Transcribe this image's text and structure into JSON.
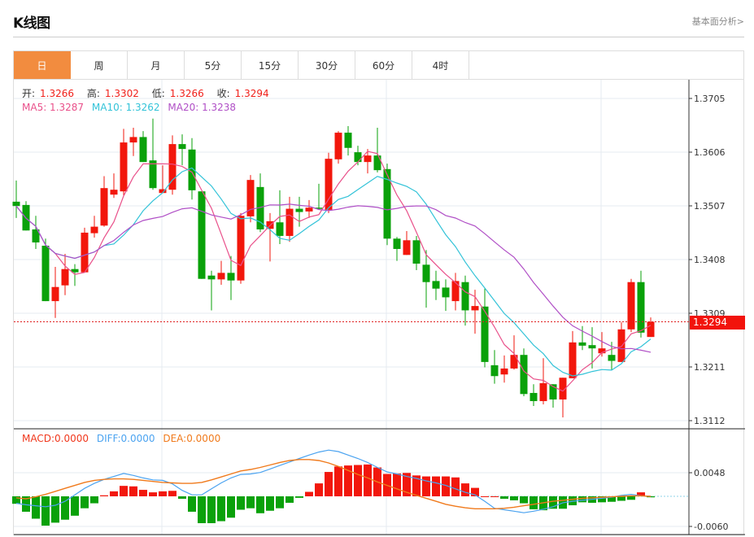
{
  "header": {
    "title": "K线图",
    "link": "基本面分析>"
  },
  "tabs": [
    {
      "label": "日",
      "active": true
    },
    {
      "label": "周"
    },
    {
      "label": "月"
    },
    {
      "label": "5分"
    },
    {
      "label": "15分"
    },
    {
      "label": "30分"
    },
    {
      "label": "60分"
    },
    {
      "label": "4时"
    }
  ],
  "ohlc_legend": {
    "open_label": "开:",
    "open": "1.3266",
    "high_label": "高:",
    "high": "1.3302",
    "low_label": "低:",
    "low": "1.3266",
    "close_label": "收:",
    "close": "1.3294"
  },
  "ma_legend": {
    "ma5": "MA5: 1.3287",
    "ma10": "MA10: 1.3262",
    "ma20": "MA20: 1.3238"
  },
  "macd_legend": {
    "macd": "MACD:0.0000",
    "diff": "DIFF:0.0000",
    "dea": "DEA:0.0000"
  },
  "current_price": "1.3294",
  "colors": {
    "up": "#f2170c",
    "down": "#0aa10a",
    "ma5": "#e9508a",
    "ma10": "#33c3d8",
    "ma20": "#b04fc6",
    "diff": "#4ba3f0",
    "dea": "#f07a1c",
    "accent": "#f28c3f"
  },
  "chart_data": {
    "type": "candlestick",
    "price_axis": {
      "ticks": [
        "1.3705",
        "1.3606",
        "1.3507",
        "1.3408",
        "1.3309",
        "1.3211",
        "1.3112"
      ],
      "range": [
        1.3112,
        1.3705
      ]
    },
    "macd_axis": {
      "ticks": [
        "0.0048",
        "-0.0060"
      ]
    },
    "candles": [
      [
        1.3515,
        1.3554,
        1.3485,
        1.3507
      ],
      [
        1.3509,
        1.3516,
        1.3462,
        1.3462
      ],
      [
        1.3464,
        1.3489,
        1.3428,
        1.344
      ],
      [
        1.3434,
        1.3447,
        1.3332,
        1.3332
      ],
      [
        1.3332,
        1.3395,
        1.3301,
        1.3358
      ],
      [
        1.3361,
        1.3419,
        1.3343,
        1.3391
      ],
      [
        1.3391,
        1.34,
        1.336,
        1.3385
      ],
      [
        1.3385,
        1.3467,
        1.3385,
        1.3458
      ],
      [
        1.3457,
        1.3489,
        1.3449,
        1.3469
      ],
      [
        1.3471,
        1.3562,
        1.3469,
        1.354
      ],
      [
        1.3528,
        1.3567,
        1.3522,
        1.3537
      ],
      [
        1.3534,
        1.3649,
        1.3527,
        1.3624
      ],
      [
        1.3624,
        1.3651,
        1.3599,
        1.3634
      ],
      [
        1.3634,
        1.3645,
        1.3588,
        1.3588
      ],
      [
        1.3591,
        1.3668,
        1.3537,
        1.354
      ],
      [
        1.3531,
        1.3582,
        1.3531,
        1.3538
      ],
      [
        1.3537,
        1.3637,
        1.3528,
        1.3621
      ],
      [
        1.3621,
        1.3639,
        1.3582,
        1.3612
      ],
      [
        1.3611,
        1.3632,
        1.3519,
        1.3536
      ],
      [
        1.3534,
        1.3534,
        1.3373,
        1.3373
      ],
      [
        1.3379,
        1.3388,
        1.3315,
        1.3372
      ],
      [
        1.3372,
        1.3406,
        1.3362,
        1.3384
      ],
      [
        1.3384,
        1.3415,
        1.3334,
        1.337
      ],
      [
        1.337,
        1.3494,
        1.3364,
        1.3489
      ],
      [
        1.3488,
        1.3564,
        1.3477,
        1.3555
      ],
      [
        1.3542,
        1.3567,
        1.3459,
        1.3464
      ],
      [
        1.3465,
        1.3494,
        1.3405,
        1.3479
      ],
      [
        1.3477,
        1.3536,
        1.3437,
        1.3452
      ],
      [
        1.3452,
        1.3524,
        1.3441,
        1.3502
      ],
      [
        1.3502,
        1.3524,
        1.3469,
        1.3496
      ],
      [
        1.3497,
        1.3518,
        1.3485,
        1.3504
      ],
      [
        1.3504,
        1.3548,
        1.35,
        1.3502
      ],
      [
        1.35,
        1.3605,
        1.3494,
        1.3594
      ],
      [
        1.3593,
        1.3645,
        1.3585,
        1.3642
      ],
      [
        1.3642,
        1.3654,
        1.36,
        1.3614
      ],
      [
        1.3606,
        1.3618,
        1.3582,
        1.3588
      ],
      [
        1.3588,
        1.3612,
        1.3567,
        1.36
      ],
      [
        1.36,
        1.3651,
        1.3569,
        1.3573
      ],
      [
        1.3575,
        1.3585,
        1.3435,
        1.3447
      ],
      [
        1.3447,
        1.345,
        1.3406,
        1.3428
      ],
      [
        1.3417,
        1.3461,
        1.3417,
        1.3444
      ],
      [
        1.3444,
        1.3452,
        1.3389,
        1.3401
      ],
      [
        1.3399,
        1.3426,
        1.332,
        1.3367
      ],
      [
        1.3369,
        1.3388,
        1.3334,
        1.3355
      ],
      [
        1.3357,
        1.3372,
        1.3314,
        1.3339
      ],
      [
        1.3332,
        1.3384,
        1.3315,
        1.3369
      ],
      [
        1.3367,
        1.3379,
        1.3287,
        1.3315
      ],
      [
        1.3315,
        1.3353,
        1.3272,
        1.3323
      ],
      [
        1.3322,
        1.3355,
        1.321,
        1.322
      ],
      [
        1.3214,
        1.3242,
        1.318,
        1.3194
      ],
      [
        1.3197,
        1.3232,
        1.3182,
        1.3208
      ],
      [
        1.3208,
        1.3269,
        1.3206,
        1.3233
      ],
      [
        1.3233,
        1.3245,
        1.3157,
        1.3161
      ],
      [
        1.3163,
        1.3179,
        1.3139,
        1.3148
      ],
      [
        1.3148,
        1.3227,
        1.3142,
        1.3181
      ],
      [
        1.3179,
        1.3179,
        1.3136,
        1.3151
      ],
      [
        1.3151,
        1.3191,
        1.3118,
        1.3191
      ],
      [
        1.319,
        1.3277,
        1.319,
        1.3256
      ],
      [
        1.3256,
        1.3286,
        1.3242,
        1.325
      ],
      [
        1.3251,
        1.3284,
        1.3208,
        1.3245
      ],
      [
        1.3236,
        1.3275,
        1.323,
        1.3245
      ],
      [
        1.3233,
        1.3257,
        1.3205,
        1.3222
      ],
      [
        1.322,
        1.3293,
        1.322,
        1.328
      ],
      [
        1.328,
        1.3373,
        1.3275,
        1.3367
      ],
      [
        1.3367,
        1.3388,
        1.3265,
        1.3274
      ],
      [
        1.3266,
        1.3302,
        1.3266,
        1.3294
      ]
    ],
    "macd_hist": [
      -0.0015,
      -0.0031,
      -0.0045,
      -0.0059,
      -0.0053,
      -0.0047,
      -0.0039,
      -0.0024,
      -0.0014,
      0.0002,
      0.001,
      0.0021,
      0.002,
      0.0013,
      0.0008,
      0.001,
      0.0011,
      -0.0005,
      -0.0031,
      -0.0054,
      -0.0054,
      -0.005,
      -0.0043,
      -0.0027,
      -0.0024,
      -0.0034,
      -0.0029,
      -0.0024,
      -0.0013,
      -0.0003,
      0.0009,
      0.0026,
      0.0049,
      0.006,
      0.0062,
      0.0063,
      0.0064,
      0.0058,
      0.0045,
      0.0046,
      0.0047,
      0.0042,
      0.004,
      0.004,
      0.004,
      0.0038,
      0.0026,
      0.0017,
      0.0,
      0.0,
      -0.0005,
      -0.0008,
      -0.0014,
      -0.0026,
      -0.0028,
      -0.0025,
      -0.0025,
      -0.0018,
      -0.0012,
      -0.0013,
      -0.0012,
      -0.0011,
      -0.0009,
      -0.0007,
      0.0008,
      -0.0002
    ],
    "diff": [
      -0.0014,
      -0.0017,
      -0.0019,
      -0.0021,
      -0.0018,
      -0.001,
      0.0003,
      0.0016,
      0.0026,
      0.0034,
      0.004,
      0.0046,
      0.0042,
      0.0037,
      0.0033,
      0.0032,
      0.0025,
      0.0012,
      0.0003,
      0.0003,
      0.0015,
      0.0027,
      0.0037,
      0.0044,
      0.0045,
      0.0048,
      0.0055,
      0.0062,
      0.0069,
      0.0076,
      0.0083,
      0.0089,
      0.0093,
      0.009,
      0.0083,
      0.0076,
      0.0068,
      0.0058,
      0.0049,
      0.0045,
      0.004,
      0.0036,
      0.0031,
      0.0027,
      0.0022,
      0.0015,
      0.0008,
      0.0003,
      -0.001,
      -0.0024,
      -0.0027,
      -0.003,
      -0.0033,
      -0.003,
      -0.0026,
      -0.0021,
      -0.0013,
      -0.001,
      -0.0008,
      -0.0006,
      -0.0004,
      -0.0002,
      0.0002,
      0.0004,
      0.0001,
      0.0
    ],
    "dea": [
      -0.0003,
      -0.0005,
      -0.0001,
      0.0004,
      0.001,
      0.0016,
      0.0022,
      0.0028,
      0.0032,
      0.0034,
      0.0035,
      0.0035,
      0.0034,
      0.0032,
      0.003,
      0.0028,
      0.0027,
      0.0026,
      0.0026,
      0.0028,
      0.0033,
      0.0039,
      0.0045,
      0.0051,
      0.0054,
      0.0058,
      0.0063,
      0.0068,
      0.0072,
      0.0074,
      0.0074,
      0.0072,
      0.0067,
      0.006,
      0.0052,
      0.0044,
      0.0037,
      0.0029,
      0.0022,
      0.0015,
      0.0008,
      0.0002,
      -0.0004,
      -0.001,
      -0.0016,
      -0.002,
      -0.0023,
      -0.0025,
      -0.0025,
      -0.0025,
      -0.0024,
      -0.0022,
      -0.0019,
      -0.0016,
      -0.0013,
      -0.001,
      -0.0008,
      -0.0006,
      -0.0004,
      -0.0003,
      -0.0002,
      -0.0001,
      0.0,
      0.0001,
      0.0001,
      0.0
    ]
  }
}
